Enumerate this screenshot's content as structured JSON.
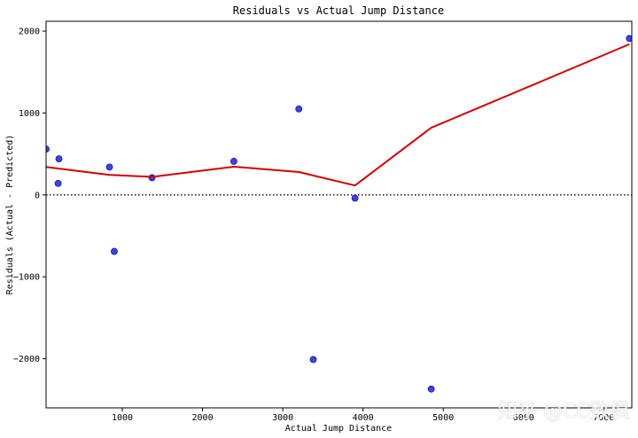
{
  "chart_data": {
    "type": "scatter",
    "title": "Residuals vs Actual Jump Distance",
    "xlabel": "Actual Jump Distance",
    "ylabel": "Residuals (Actual - Predicted)",
    "xlim": [
      50,
      7350
    ],
    "ylim": [
      -2600,
      2120
    ],
    "xticks": [
      1000,
      2000,
      3000,
      4000,
      5000,
      6000,
      7000
    ],
    "yticks": [
      -2000,
      -1000,
      0,
      1000,
      2000
    ],
    "tick_labels_x": [
      "1000",
      "2000",
      "3000",
      "4000",
      "5000",
      "6000",
      "7000"
    ],
    "tick_labels_y": [
      "−2000",
      "−1000",
      "0",
      "1000",
      "2000"
    ],
    "grid": false,
    "reference_line": {
      "y": 0,
      "style": "dotted",
      "color": "#000000"
    },
    "points": [
      {
        "x": 50,
        "y": 560
      },
      {
        "x": 200,
        "y": 140
      },
      {
        "x": 210,
        "y": 440
      },
      {
        "x": 840,
        "y": 340
      },
      {
        "x": 900,
        "y": -690
      },
      {
        "x": 1370,
        "y": 210
      },
      {
        "x": 2390,
        "y": 410
      },
      {
        "x": 3200,
        "y": 1050
      },
      {
        "x": 3380,
        "y": -2010
      },
      {
        "x": 3900,
        "y": -40
      },
      {
        "x": 4850,
        "y": -2370
      },
      {
        "x": 7320,
        "y": 1910
      }
    ],
    "trend_line": {
      "x": [
        50,
        840,
        1370,
        2390,
        3200,
        3900,
        4850,
        7320
      ],
      "y": [
        340,
        245,
        220,
        345,
        280,
        115,
        820,
        1840
      ]
    },
    "colors": {
      "points": "#1f1fe0",
      "point_edge": "#0000a0",
      "trend": "#d40000",
      "axis": "#000000"
    }
  },
  "watermark": {
    "text": "知乎 @CC数模"
  }
}
